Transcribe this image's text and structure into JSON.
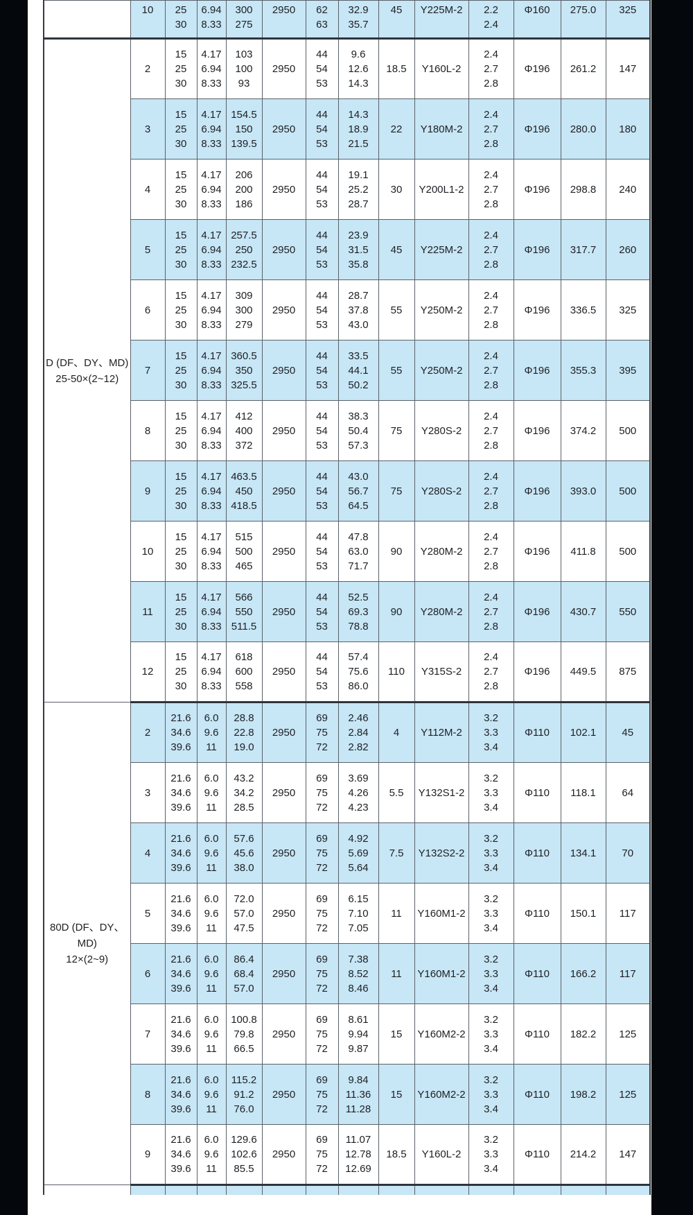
{
  "page": {
    "background_color": "#04070b",
    "paper_color": "#ffffff",
    "accent_row_color": "#c7e6f6"
  },
  "table": {
    "column_keys": [
      "stage",
      "flow_m3h",
      "flow_ls",
      "head_m",
      "speed_rpm",
      "efficiency_pct",
      "shaft_power_kw",
      "motor_power_kw",
      "motor_model",
      "npsh_m",
      "impeller_dia",
      "length",
      "weight_kg"
    ],
    "groups": [
      {
        "label_lines": [],
        "rows": [
          {
            "clipped": "top",
            "shaded": true,
            "stage": "10",
            "flow_m3h": [
              "25",
              "30"
            ],
            "flow_ls": [
              "6.94",
              "8.33"
            ],
            "head_m": [
              "300",
              "275"
            ],
            "speed_rpm": "2950",
            "efficiency_pct": [
              "62",
              "63"
            ],
            "shaft_power_kw": [
              "32.9",
              "35.7"
            ],
            "motor_power_kw": "45",
            "motor_model": "Y225M-2",
            "npsh_m": [
              "2.2",
              "2.4"
            ],
            "impeller_dia": "Φ160",
            "length": "275.0",
            "weight_kg": "325"
          }
        ]
      },
      {
        "label_lines": [
          "D (DF、DY、MD)",
          "25-50×(2~12)"
        ],
        "rows": [
          {
            "shaded": false,
            "stage": "2",
            "flow_m3h": [
              "15",
              "25",
              "30"
            ],
            "flow_ls": [
              "4.17",
              "6.94",
              "8.33"
            ],
            "head_m": [
              "103",
              "100",
              "93"
            ],
            "speed_rpm": "2950",
            "efficiency_pct": [
              "44",
              "54",
              "53"
            ],
            "shaft_power_kw": [
              "9.6",
              "12.6",
              "14.3"
            ],
            "motor_power_kw": "18.5",
            "motor_model": "Y160L-2",
            "npsh_m": [
              "2.4",
              "2.7",
              "2.8"
            ],
            "impeller_dia": "Φ196",
            "length": "261.2",
            "weight_kg": "147"
          },
          {
            "shaded": true,
            "stage": "3",
            "flow_m3h": [
              "15",
              "25",
              "30"
            ],
            "flow_ls": [
              "4.17",
              "6.94",
              "8.33"
            ],
            "head_m": [
              "154.5",
              "150",
              "139.5"
            ],
            "speed_rpm": "2950",
            "efficiency_pct": [
              "44",
              "54",
              "53"
            ],
            "shaft_power_kw": [
              "14.3",
              "18.9",
              "21.5"
            ],
            "motor_power_kw": "22",
            "motor_model": "Y180M-2",
            "npsh_m": [
              "2.4",
              "2.7",
              "2.8"
            ],
            "impeller_dia": "Φ196",
            "length": "280.0",
            "weight_kg": "180"
          },
          {
            "shaded": false,
            "stage": "4",
            "flow_m3h": [
              "15",
              "25",
              "30"
            ],
            "flow_ls": [
              "4.17",
              "6.94",
              "8.33"
            ],
            "head_m": [
              "206",
              "200",
              "186"
            ],
            "speed_rpm": "2950",
            "efficiency_pct": [
              "44",
              "54",
              "53"
            ],
            "shaft_power_kw": [
              "19.1",
              "25.2",
              "28.7"
            ],
            "motor_power_kw": "30",
            "motor_model": "Y200L1-2",
            "npsh_m": [
              "2.4",
              "2.7",
              "2.8"
            ],
            "impeller_dia": "Φ196",
            "length": "298.8",
            "weight_kg": "240"
          },
          {
            "shaded": true,
            "stage": "5",
            "flow_m3h": [
              "15",
              "25",
              "30"
            ],
            "flow_ls": [
              "4.17",
              "6.94",
              "8.33"
            ],
            "head_m": [
              "257.5",
              "250",
              "232.5"
            ],
            "speed_rpm": "2950",
            "efficiency_pct": [
              "44",
              "54",
              "53"
            ],
            "shaft_power_kw": [
              "23.9",
              "31.5",
              "35.8"
            ],
            "motor_power_kw": "45",
            "motor_model": "Y225M-2",
            "npsh_m": [
              "2.4",
              "2.7",
              "2.8"
            ],
            "impeller_dia": "Φ196",
            "length": "317.7",
            "weight_kg": "260"
          },
          {
            "shaded": false,
            "stage": "6",
            "flow_m3h": [
              "15",
              "25",
              "30"
            ],
            "flow_ls": [
              "4.17",
              "6.94",
              "8.33"
            ],
            "head_m": [
              "309",
              "300",
              "279"
            ],
            "speed_rpm": "2950",
            "efficiency_pct": [
              "44",
              "54",
              "53"
            ],
            "shaft_power_kw": [
              "28.7",
              "37.8",
              "43.0"
            ],
            "motor_power_kw": "55",
            "motor_model": "Y250M-2",
            "npsh_m": [
              "2.4",
              "2.7",
              "2.8"
            ],
            "impeller_dia": "Φ196",
            "length": "336.5",
            "weight_kg": "325"
          },
          {
            "shaded": true,
            "stage": "7",
            "flow_m3h": [
              "15",
              "25",
              "30"
            ],
            "flow_ls": [
              "4.17",
              "6.94",
              "8.33"
            ],
            "head_m": [
              "360.5",
              "350",
              "325.5"
            ],
            "speed_rpm": "2950",
            "efficiency_pct": [
              "44",
              "54",
              "53"
            ],
            "shaft_power_kw": [
              "33.5",
              "44.1",
              "50.2"
            ],
            "motor_power_kw": "55",
            "motor_model": "Y250M-2",
            "npsh_m": [
              "2.4",
              "2.7",
              "2.8"
            ],
            "impeller_dia": "Φ196",
            "length": "355.3",
            "weight_kg": "395"
          },
          {
            "shaded": false,
            "stage": "8",
            "flow_m3h": [
              "15",
              "25",
              "30"
            ],
            "flow_ls": [
              "4.17",
              "6.94",
              "8.33"
            ],
            "head_m": [
              "412",
              "400",
              "372"
            ],
            "speed_rpm": "2950",
            "efficiency_pct": [
              "44",
              "54",
              "53"
            ],
            "shaft_power_kw": [
              "38.3",
              "50.4",
              "57.3"
            ],
            "motor_power_kw": "75",
            "motor_model": "Y280S-2",
            "npsh_m": [
              "2.4",
              "2.7",
              "2.8"
            ],
            "impeller_dia": "Φ196",
            "length": "374.2",
            "weight_kg": "500"
          },
          {
            "shaded": true,
            "stage": "9",
            "flow_m3h": [
              "15",
              "25",
              "30"
            ],
            "flow_ls": [
              "4.17",
              "6.94",
              "8.33"
            ],
            "head_m": [
              "463.5",
              "450",
              "418.5"
            ],
            "speed_rpm": "2950",
            "efficiency_pct": [
              "44",
              "54",
              "53"
            ],
            "shaft_power_kw": [
              "43.0",
              "56.7",
              "64.5"
            ],
            "motor_power_kw": "75",
            "motor_model": "Y280S-2",
            "npsh_m": [
              "2.4",
              "2.7",
              "2.8"
            ],
            "impeller_dia": "Φ196",
            "length": "393.0",
            "weight_kg": "500"
          },
          {
            "shaded": false,
            "stage": "10",
            "flow_m3h": [
              "15",
              "25",
              "30"
            ],
            "flow_ls": [
              "4.17",
              "6.94",
              "8.33"
            ],
            "head_m": [
              "515",
              "500",
              "465"
            ],
            "speed_rpm": "2950",
            "efficiency_pct": [
              "44",
              "54",
              "53"
            ],
            "shaft_power_kw": [
              "47.8",
              "63.0",
              "71.7"
            ],
            "motor_power_kw": "90",
            "motor_model": "Y280M-2",
            "npsh_m": [
              "2.4",
              "2.7",
              "2.8"
            ],
            "impeller_dia": "Φ196",
            "length": "411.8",
            "weight_kg": "500"
          },
          {
            "shaded": true,
            "stage": "11",
            "flow_m3h": [
              "15",
              "25",
              "30"
            ],
            "flow_ls": [
              "4.17",
              "6.94",
              "8.33"
            ],
            "head_m": [
              "566",
              "550",
              "511.5"
            ],
            "speed_rpm": "2950",
            "efficiency_pct": [
              "44",
              "54",
              "53"
            ],
            "shaft_power_kw": [
              "52.5",
              "69.3",
              "78.8"
            ],
            "motor_power_kw": "90",
            "motor_model": "Y280M-2",
            "npsh_m": [
              "2.4",
              "2.7",
              "2.8"
            ],
            "impeller_dia": "Φ196",
            "length": "430.7",
            "weight_kg": "550"
          },
          {
            "shaded": false,
            "stage": "12",
            "flow_m3h": [
              "15",
              "25",
              "30"
            ],
            "flow_ls": [
              "4.17",
              "6.94",
              "8.33"
            ],
            "head_m": [
              "618",
              "600",
              "558"
            ],
            "speed_rpm": "2950",
            "efficiency_pct": [
              "44",
              "54",
              "53"
            ],
            "shaft_power_kw": [
              "57.4",
              "75.6",
              "86.0"
            ],
            "motor_power_kw": "110",
            "motor_model": "Y315S-2",
            "npsh_m": [
              "2.4",
              "2.7",
              "2.8"
            ],
            "impeller_dia": "Φ196",
            "length": "449.5",
            "weight_kg": "875"
          }
        ]
      },
      {
        "label_lines": [
          "80D (DF、DY、MD)",
          "12×(2~9)"
        ],
        "rows": [
          {
            "shaded": true,
            "stage": "2",
            "flow_m3h": [
              "21.6",
              "34.6",
              "39.6"
            ],
            "flow_ls": [
              "6.0",
              "9.6",
              "11"
            ],
            "head_m": [
              "28.8",
              "22.8",
              "19.0"
            ],
            "speed_rpm": "2950",
            "efficiency_pct": [
              "69",
              "75",
              "72"
            ],
            "shaft_power_kw": [
              "2.46",
              "2.84",
              "2.82"
            ],
            "motor_power_kw": "4",
            "motor_model": "Y112M-2",
            "npsh_m": [
              "3.2",
              "3.3",
              "3.4"
            ],
            "impeller_dia": "Φ110",
            "length": "102.1",
            "weight_kg": "45"
          },
          {
            "shaded": false,
            "stage": "3",
            "flow_m3h": [
              "21.6",
              "34.6",
              "39.6"
            ],
            "flow_ls": [
              "6.0",
              "9.6",
              "11"
            ],
            "head_m": [
              "43.2",
              "34.2",
              "28.5"
            ],
            "speed_rpm": "2950",
            "efficiency_pct": [
              "69",
              "75",
              "72"
            ],
            "shaft_power_kw": [
              "3.69",
              "4.26",
              "4.23"
            ],
            "motor_power_kw": "5.5",
            "motor_model": "Y132S1-2",
            "npsh_m": [
              "3.2",
              "3.3",
              "3.4"
            ],
            "impeller_dia": "Φ110",
            "length": "118.1",
            "weight_kg": "64"
          },
          {
            "shaded": true,
            "stage": "4",
            "flow_m3h": [
              "21.6",
              "34.6",
              "39.6"
            ],
            "flow_ls": [
              "6.0",
              "9.6",
              "11"
            ],
            "head_m": [
              "57.6",
              "45.6",
              "38.0"
            ],
            "speed_rpm": "2950",
            "efficiency_pct": [
              "69",
              "75",
              "72"
            ],
            "shaft_power_kw": [
              "4.92",
              "5.69",
              "5.64"
            ],
            "motor_power_kw": "7.5",
            "motor_model": "Y132S2-2",
            "npsh_m": [
              "3.2",
              "3.3",
              "3.4"
            ],
            "impeller_dia": "Φ110",
            "length": "134.1",
            "weight_kg": "70"
          },
          {
            "shaded": false,
            "stage": "5",
            "flow_m3h": [
              "21.6",
              "34.6",
              "39.6"
            ],
            "flow_ls": [
              "6.0",
              "9.6",
              "11"
            ],
            "head_m": [
              "72.0",
              "57.0",
              "47.5"
            ],
            "speed_rpm": "2950",
            "efficiency_pct": [
              "69",
              "75",
              "72"
            ],
            "shaft_power_kw": [
              "6.15",
              "7.10",
              "7.05"
            ],
            "motor_power_kw": "11",
            "motor_model": "Y160M1-2",
            "npsh_m": [
              "3.2",
              "3.3",
              "3.4"
            ],
            "impeller_dia": "Φ110",
            "length": "150.1",
            "weight_kg": "117"
          },
          {
            "shaded": true,
            "stage": "6",
            "flow_m3h": [
              "21.6",
              "34.6",
              "39.6"
            ],
            "flow_ls": [
              "6.0",
              "9.6",
              "11"
            ],
            "head_m": [
              "86.4",
              "68.4",
              "57.0"
            ],
            "speed_rpm": "2950",
            "efficiency_pct": [
              "69",
              "75",
              "72"
            ],
            "shaft_power_kw": [
              "7.38",
              "8.52",
              "8.46"
            ],
            "motor_power_kw": "11",
            "motor_model": "Y160M1-2",
            "npsh_m": [
              "3.2",
              "3.3",
              "3.4"
            ],
            "impeller_dia": "Φ110",
            "length": "166.2",
            "weight_kg": "117"
          },
          {
            "shaded": false,
            "stage": "7",
            "flow_m3h": [
              "21.6",
              "34.6",
              "39.6"
            ],
            "flow_ls": [
              "6.0",
              "9.6",
              "11"
            ],
            "head_m": [
              "100.8",
              "79.8",
              "66.5"
            ],
            "speed_rpm": "2950",
            "efficiency_pct": [
              "69",
              "75",
              "72"
            ],
            "shaft_power_kw": [
              "8.61",
              "9.94",
              "9.87"
            ],
            "motor_power_kw": "15",
            "motor_model": "Y160M2-2",
            "npsh_m": [
              "3.2",
              "3.3",
              "3.4"
            ],
            "impeller_dia": "Φ110",
            "length": "182.2",
            "weight_kg": "125"
          },
          {
            "shaded": true,
            "stage": "8",
            "flow_m3h": [
              "21.6",
              "34.6",
              "39.6"
            ],
            "flow_ls": [
              "6.0",
              "9.6",
              "11"
            ],
            "head_m": [
              "115.2",
              "91.2",
              "76.0"
            ],
            "speed_rpm": "2950",
            "efficiency_pct": [
              "69",
              "75",
              "72"
            ],
            "shaft_power_kw": [
              "9.84",
              "11.36",
              "11.28"
            ],
            "motor_power_kw": "15",
            "motor_model": "Y160M2-2",
            "npsh_m": [
              "3.2",
              "3.3",
              "3.4"
            ],
            "impeller_dia": "Φ110",
            "length": "198.2",
            "weight_kg": "125"
          },
          {
            "shaded": false,
            "stage": "9",
            "flow_m3h": [
              "21.6",
              "34.6",
              "39.6"
            ],
            "flow_ls": [
              "6.0",
              "9.6",
              "11"
            ],
            "head_m": [
              "129.6",
              "102.6",
              "85.5"
            ],
            "speed_rpm": "2950",
            "efficiency_pct": [
              "69",
              "75",
              "72"
            ],
            "shaft_power_kw": [
              "11.07",
              "12.78",
              "12.69"
            ],
            "motor_power_kw": "18.5",
            "motor_model": "Y160L-2",
            "npsh_m": [
              "3.2",
              "3.3",
              "3.4"
            ],
            "impeller_dia": "Φ110",
            "length": "214.2",
            "weight_kg": "147"
          }
        ]
      },
      {
        "label_lines": [],
        "rows": [
          {
            "clipped": "bottom",
            "shaded": true,
            "stage": "",
            "flow_m3h": [],
            "flow_ls": [],
            "head_m": [],
            "speed_rpm": "",
            "efficiency_pct": [],
            "shaft_power_kw": [],
            "motor_power_kw": "",
            "motor_model": "",
            "npsh_m": [],
            "impeller_dia": "",
            "length": "",
            "weight_kg": ""
          }
        ]
      }
    ]
  }
}
